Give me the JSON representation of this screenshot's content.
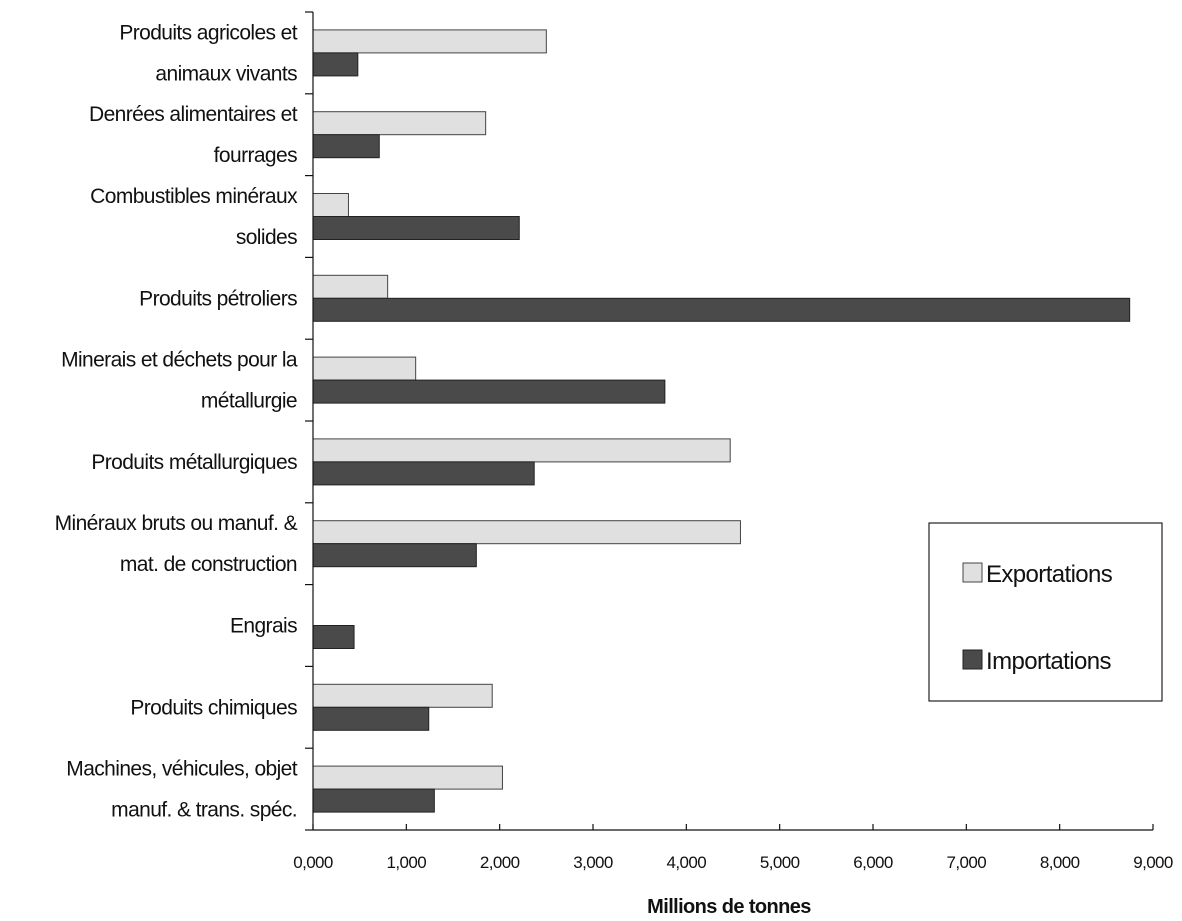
{
  "chart_data": {
    "type": "bar",
    "orientation": "horizontal",
    "categories": [
      [
        "Produits agricoles et",
        "animaux vivants"
      ],
      [
        "Denrées alimentaires et",
        "fourrages"
      ],
      [
        "Combustibles minéraux",
        "solides"
      ],
      [
        "Produits pétroliers"
      ],
      [
        "Minerais et déchets pour la",
        "métallurgie"
      ],
      [
        "Produits métallurgiques"
      ],
      [
        "Minéraux bruts ou manuf. &",
        "mat. de construction"
      ],
      [
        "Engrais"
      ],
      [
        "Produits chimiques"
      ],
      [
        "Machines, véhicules, objet",
        "manuf. & trans. spéc."
      ]
    ],
    "series": [
      {
        "name": "Exportations",
        "color": "#e0e0e0",
        "values": [
          2.5,
          1.85,
          0.38,
          0.8,
          1.1,
          4.47,
          4.58,
          0,
          1.92,
          2.03
        ]
      },
      {
        "name": "Importations",
        "color": "#4a4a4a",
        "values": [
          0.48,
          0.71,
          2.21,
          8.75,
          3.77,
          2.37,
          1.75,
          0.44,
          1.24,
          1.3
        ]
      }
    ],
    "xlabel": "Millions de tonnes",
    "xlim": [
      0,
      9
    ],
    "xticks": [
      0,
      1,
      2,
      3,
      4,
      5,
      6,
      7,
      8,
      9
    ],
    "xtick_labels": [
      "0,000",
      "1,000",
      "2,000",
      "3,000",
      "4,000",
      "5,000",
      "6,000",
      "7,000",
      "8,000",
      "9,000"
    ],
    "grid": false,
    "legend_position": "right"
  }
}
